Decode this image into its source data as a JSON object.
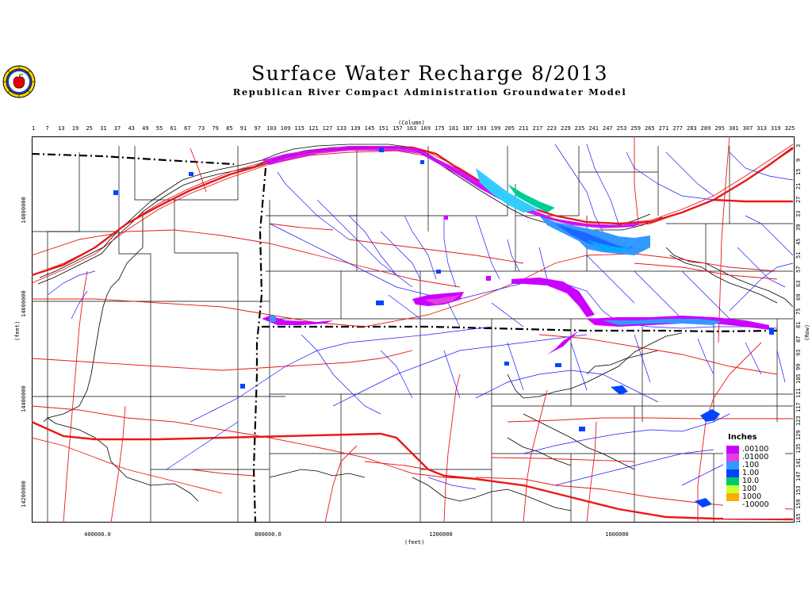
{
  "header": {
    "title": "Surface Water Recharge 8/2013",
    "subtitle": "Republican River Compact Administration Groundwater Model"
  },
  "axes": {
    "column_label": "(Column)",
    "row_label": "(Row)",
    "x_feet_label": "(feet)",
    "y_feet_label": "(feet)",
    "column_ticks": [
      "1",
      "7",
      "13",
      "19",
      "25",
      "31",
      "37",
      "43",
      "49",
      "55",
      "61",
      "67",
      "73",
      "79",
      "85",
      "91",
      "97",
      "103",
      "109",
      "115",
      "121",
      "127",
      "133",
      "139",
      "145",
      "151",
      "157",
      "163",
      "169",
      "175",
      "181",
      "187",
      "193",
      "199",
      "205",
      "211",
      "217",
      "223",
      "229",
      "235",
      "241",
      "247",
      "253",
      "259",
      "265",
      "271",
      "277",
      "283",
      "289",
      "295",
      "301",
      "307",
      "313",
      "319",
      "325"
    ],
    "row_ticks": [
      "3",
      "9",
      "15",
      "21",
      "27",
      "33",
      "39",
      "45",
      "51",
      "57",
      "63",
      "69",
      "75",
      "81",
      "87",
      "93",
      "99",
      "105",
      "111",
      "117",
      "123",
      "129",
      "135",
      "141",
      "147",
      "153",
      "159",
      "165"
    ],
    "x_ticks": [
      "400000.0",
      "800000.0",
      "1200000",
      "1600000"
    ],
    "y_ticks": [
      "14800000",
      "14600000",
      "14400000",
      "14200000"
    ]
  },
  "legend": {
    "title": "Inches",
    "items": [
      {
        "label": ".00100",
        "color": "#cc00ff"
      },
      {
        "label": ".01000",
        "color": "#e040e0"
      },
      {
        "label": ".100",
        "color": "#3399ff"
      },
      {
        "label": "1.00",
        "color": "#0044ff"
      },
      {
        "label": "10.0",
        "color": "#00cc66"
      },
      {
        "label": "100",
        "color": "#ccff33"
      },
      {
        "label": "1000",
        "color": "#ffaa00"
      },
      {
        "label": "-10000",
        "color": "#ffffff"
      }
    ]
  },
  "colors": {
    "roads": "#e8181a",
    "streams": "#1a1aff",
    "boundary": "#000000",
    "grid": "#000000"
  },
  "icons": {
    "logo": "apple-seal-icon"
  }
}
